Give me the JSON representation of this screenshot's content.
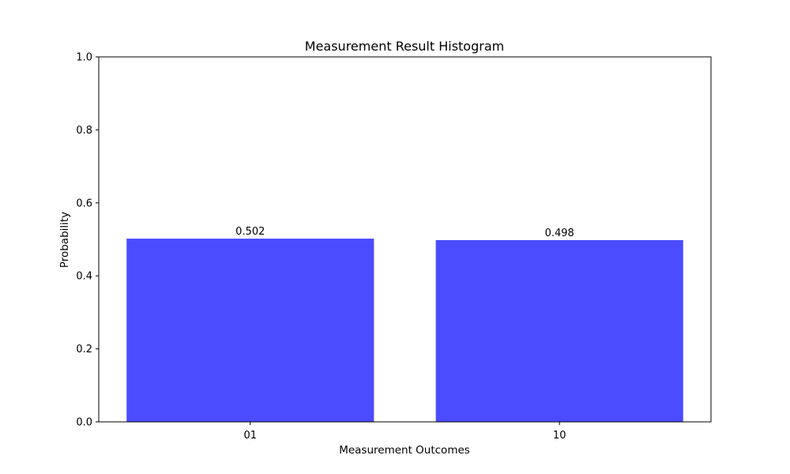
{
  "chart_data": {
    "type": "bar",
    "title": "Measurement Result Histogram",
    "xlabel": "Measurement Outcomes",
    "ylabel": "Probability",
    "categories": [
      "01",
      "10"
    ],
    "values": [
      0.502,
      0.498
    ],
    "value_labels": [
      "0.502",
      "0.498"
    ],
    "ylim": [
      0,
      1.0
    ],
    "yticks": [
      0.0,
      0.2,
      0.4,
      0.6,
      0.8,
      1.0
    ],
    "ytick_labels": [
      "0.0",
      "0.2",
      "0.4",
      "0.6",
      "0.8",
      "1.0"
    ],
    "bar_color": "#4b4bff",
    "grid": false,
    "legend": false
  }
}
